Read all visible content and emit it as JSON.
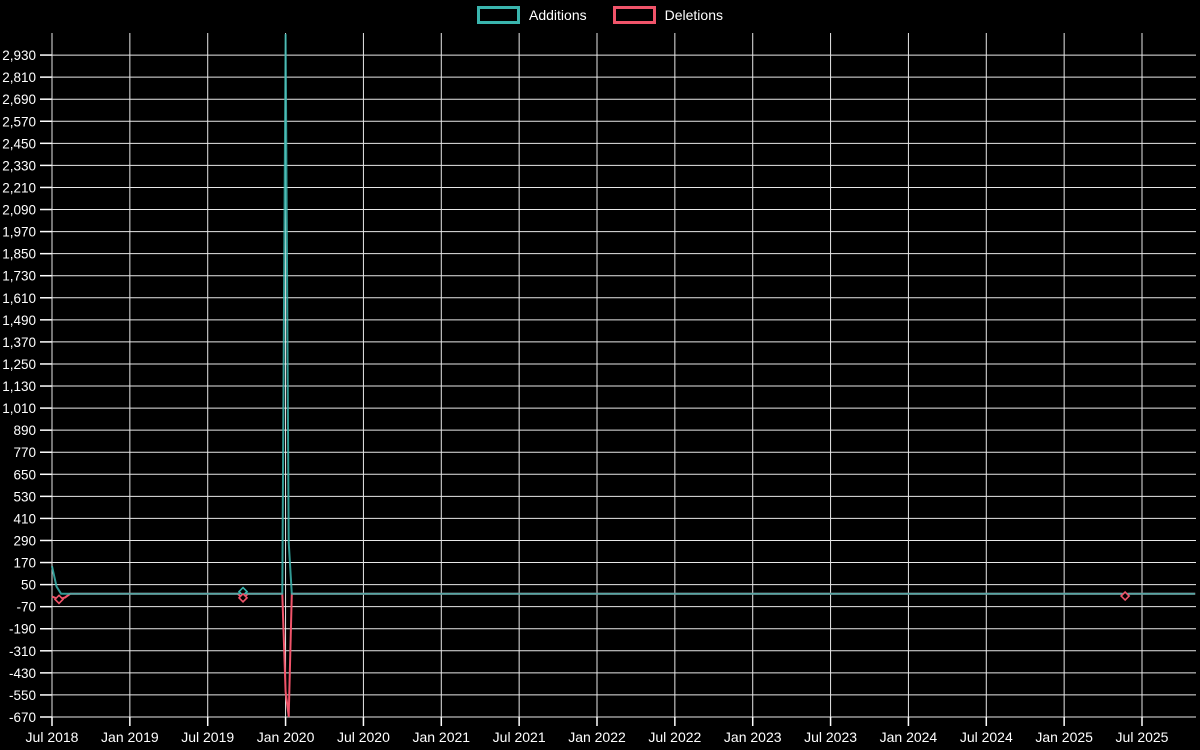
{
  "legend": {
    "items": [
      {
        "label": "Additions",
        "color": "#3ab5ae"
      },
      {
        "label": "Deletions",
        "color": "#f0546a"
      }
    ]
  },
  "chart_data": {
    "type": "line",
    "title": "",
    "xlabel": "",
    "ylabel": "",
    "background_color": "#000000",
    "grid_color": "#e8e8e8",
    "text_color": "#ffffff",
    "grid": true,
    "legend_position": "top-center",
    "x_axis": {
      "unit": "months since Jul 2018",
      "tick_labels": [
        "Jul 2018",
        "Jan 2019",
        "Jul 2019",
        "Jan 2020",
        "Jul 2020",
        "Jan 2021",
        "Jul 2021",
        "Jan 2022",
        "Jul 2022",
        "Jan 2023",
        "Jul 2023",
        "Jan 2024",
        "Jul 2024",
        "Jan 2025",
        "Jul 2025"
      ],
      "tick_positions_months": [
        0,
        6,
        12,
        18,
        24,
        30,
        36,
        42,
        48,
        54,
        60,
        66,
        72,
        78,
        84
      ],
      "domain_months": [
        0,
        88.2
      ]
    },
    "y_axis": {
      "range": [
        -670,
        3050
      ],
      "tick_values": [
        2930,
        2810,
        2690,
        2570,
        2450,
        2330,
        2210,
        2090,
        1970,
        1850,
        1730,
        1610,
        1490,
        1370,
        1250,
        1130,
        1010,
        890,
        770,
        650,
        530,
        410,
        290,
        170,
        50,
        -70,
        -190,
        -310,
        -430,
        -550,
        -670
      ],
      "tick_labels": [
        "2,930",
        "2,810",
        "2,690",
        "2,570",
        "2,450",
        "2,330",
        "2,210",
        "2,090",
        "1,970",
        "1,850",
        "1,730",
        "1,610",
        "1,490",
        "1,370",
        "1,250",
        "1,130",
        "1,010",
        "890",
        "770",
        "650",
        "530",
        "410",
        "290",
        "170",
        "50",
        "-70",
        "-190",
        "-310",
        "-430",
        "-550",
        "-670"
      ]
    },
    "series": [
      {
        "name": "Additions",
        "color": "#3ab5ae",
        "points": [
          [
            0,
            150
          ],
          [
            0.35,
            40
          ],
          [
            0.7,
            0
          ],
          [
            14.3,
            0
          ],
          [
            14.72,
            12
          ],
          [
            15.1,
            0
          ],
          [
            17.75,
            0
          ],
          [
            18.0,
            3040
          ],
          [
            18.24,
            280
          ],
          [
            18.48,
            0
          ],
          [
            88.1,
            0
          ]
        ],
        "markers": [
          [
            14.72,
            12
          ]
        ]
      },
      {
        "name": "Deletions",
        "color": "#f0546a",
        "points": [
          [
            0,
            -15
          ],
          [
            0.54,
            -30
          ],
          [
            1.0,
            -20
          ],
          [
            1.4,
            0
          ],
          [
            14.3,
            0
          ],
          [
            14.72,
            -22
          ],
          [
            15.1,
            0
          ],
          [
            17.75,
            0
          ],
          [
            18.0,
            -533
          ],
          [
            18.24,
            -665
          ],
          [
            18.48,
            0
          ],
          [
            82.4,
            0
          ],
          [
            82.7,
            -12
          ],
          [
            83.0,
            0
          ],
          [
            88.1,
            0
          ]
        ],
        "markers": [
          [
            0.54,
            -30
          ],
          [
            14.72,
            -22
          ],
          [
            82.7,
            -12
          ]
        ]
      }
    ],
    "annotations": {
      "peak_additions": 3040,
      "min_deletions": -665,
      "peak_date_approx": "Jan 2020"
    }
  }
}
